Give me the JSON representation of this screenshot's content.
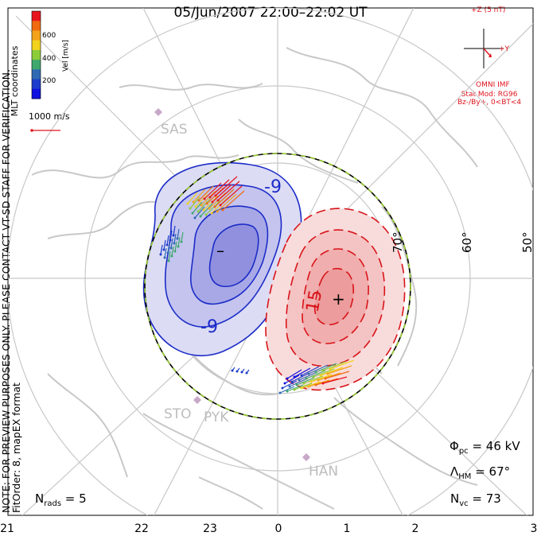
{
  "title": "05/Jun/2007 22:00–22:02 UT",
  "note_lines": [
    "NOTE: FOR PREVIEW PURPOSES ONLY. PLEASE CONTACT VT-SD STAFF FOR VERIFICATION.",
    "FitOrder: 8, mapEX format"
  ],
  "coordinate_label": "MLT coordinates",
  "colorbar": {
    "label": "Vel [m/s]",
    "ticks": [
      "600",
      "400",
      "200"
    ],
    "colors": [
      "#e8141e",
      "#f06a10",
      "#f3a21a",
      "#f2d21c",
      "#8ccc3a",
      "#3ea86e",
      "#2f6ab4",
      "#1c3ccc",
      "#1010e0"
    ]
  },
  "reference_vector": "1000 m/s",
  "imf": {
    "title": "+Z (5 nT)",
    "y_label": "+Y",
    "source": "OMNI IMF",
    "stat_model": [
      "Stat Mod: RG96",
      "Bz-/By+, 0<BT<4"
    ]
  },
  "stations": [
    "SAS",
    "STO",
    "PYK",
    "HAN"
  ],
  "latitude_labels": [
    "70°",
    "60°",
    "50°"
  ],
  "mlt_labels": [
    "21",
    "22",
    "23",
    "0",
    "1",
    "2",
    "3"
  ],
  "contour_labels": {
    "negative": "-9",
    "negative_2": "-9",
    "positive": "15",
    "min_marker": "–",
    "max_marker": "+"
  },
  "stats": {
    "phi_pc": "46 kV",
    "lambda_hm": "67°",
    "n_vc": "73",
    "n_rads": "5"
  },
  "colors": {
    "negative_contour": "#1c2cc8",
    "positive_contour": "#d8141a",
    "map": "#c8c8c8",
    "hmb": "#9acd32"
  }
}
